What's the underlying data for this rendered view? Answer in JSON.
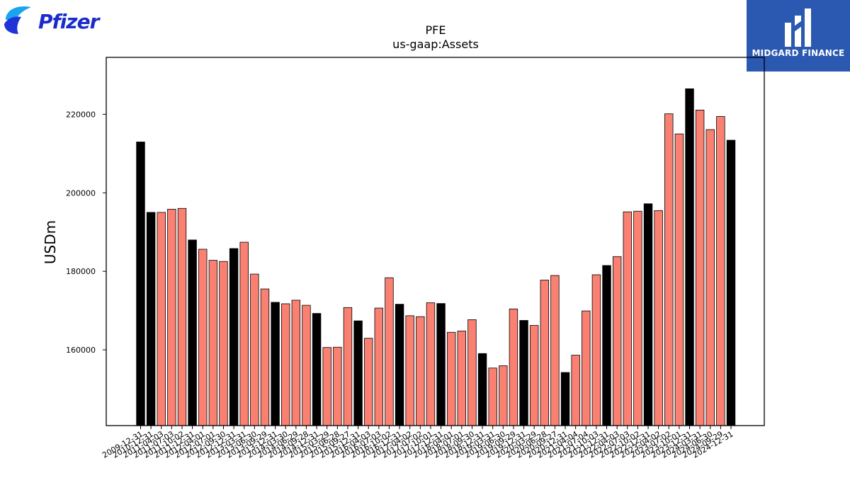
{
  "logos": {
    "left_brand": "Pfizer",
    "right_brand": "MIDGARD FINANCE",
    "left_brand_color": "#1f33d6",
    "right_brand_bg": "#2b58b0"
  },
  "chart_data": {
    "type": "bar",
    "title": "PFE",
    "subtitle": "us-gaap:Assets",
    "xlabel": "",
    "ylabel": "USDm",
    "ylim": [
      140700,
      234500
    ],
    "yticks": [
      160000,
      180000,
      200000,
      220000
    ],
    "grid": false,
    "colors": {
      "annual": "#000000",
      "quarterly": "#fa8072",
      "edge": "#000000"
    },
    "categories": [
      "2009-12-31",
      "2010-12-31",
      "2011-04-03",
      "2011-07-03",
      "2011-10-02",
      "2011-12-31",
      "2012-04-01",
      "2012-07-01",
      "2012-09-30",
      "2012-12-31",
      "2013-03-31",
      "2013-06-30",
      "2013-09-29",
      "2013-12-31",
      "2014-03-30",
      "2014-06-29",
      "2014-09-28",
      "2014-12-31",
      "2015-03-29",
      "2015-06-28",
      "2015-09-27",
      "2015-12-31",
      "2016-04-03",
      "2016-07-03",
      "2016-10-02",
      "2016-12-31",
      "2017-04-02",
      "2017-07-02",
      "2017-10-01",
      "2017-12-31",
      "2018-04-01",
      "2018-07-01",
      "2018-09-30",
      "2018-12-31",
      "2019-03-31",
      "2019-06-30",
      "2019-09-29",
      "2019-12-31",
      "2020-03-29",
      "2020-06-28",
      "2020-09-27",
      "2020-12-31",
      "2021-04-04",
      "2021-07-04",
      "2021-10-03",
      "2021-12-31",
      "2022-04-03",
      "2022-07-03",
      "2022-10-02",
      "2022-12-31",
      "2023-04-02",
      "2023-07-02",
      "2023-10-01",
      "2023-12-31",
      "2024-03-31",
      "2024-06-30",
      "2024-09-29",
      "2024-12-31"
    ],
    "values": [
      212949,
      195014,
      195014,
      195827,
      196032,
      187986,
      185619,
      182802,
      182513,
      185798,
      187413,
      179294,
      175505,
      172101,
      171732,
      172641,
      171349,
      169274,
      160600,
      160673,
      170768,
      167381,
      162952,
      170634,
      178361,
      171615,
      168686,
      168453,
      171992,
      171797,
      164464,
      164787,
      167683,
      159053,
      155359,
      155942,
      170418,
      167489,
      166216,
      177768,
      178944,
      154229,
      158628,
      169912,
      179128,
      181476,
      183756,
      195152,
      195315,
      197205,
      195473,
      220123,
      214998,
      226501,
      221080,
      216100,
      219440,
      213396
    ]
  }
}
